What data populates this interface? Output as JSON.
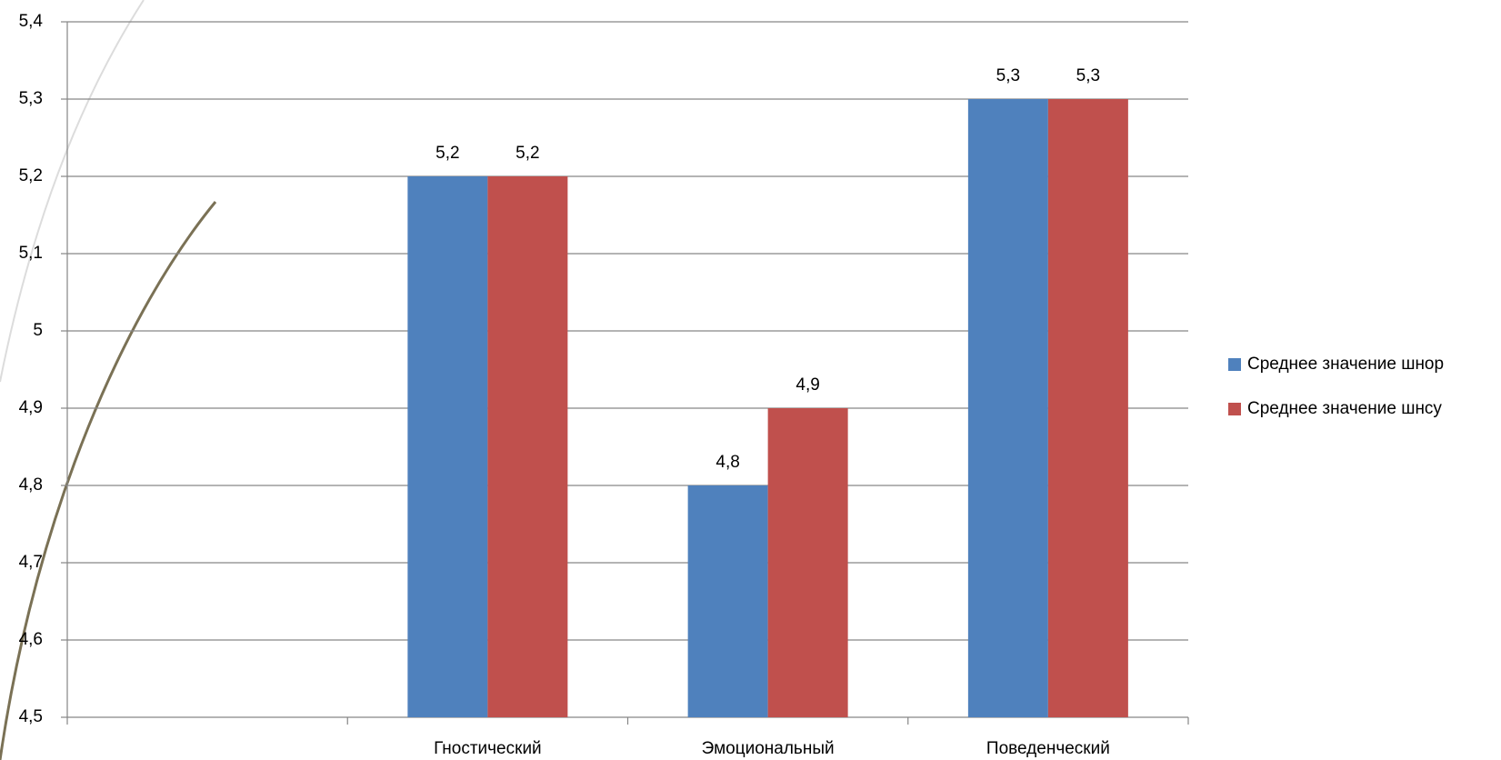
{
  "chart_data": {
    "type": "bar",
    "categories": [
      null,
      "Гностический",
      "Эмоциональный",
      "Поведенческий"
    ],
    "series": [
      {
        "name": "Среднее значение шнор",
        "color": "#4f81bd",
        "values": [
          null,
          5.2,
          4.8,
          5.3
        ],
        "value_labels": [
          null,
          "5,2",
          "4,8",
          "5,3"
        ]
      },
      {
        "name": "Среднее значение шнсу",
        "color": "#c0504d",
        "values": [
          null,
          5.2,
          4.9,
          5.3
        ],
        "value_labels": [
          null,
          "5,2",
          "4,9",
          "5,3"
        ]
      }
    ],
    "ylim": [
      4.5,
      5.4
    ],
    "yticks": [
      {
        "value": 4.5,
        "label": "4,5"
      },
      {
        "value": 4.6,
        "label": "4,6"
      },
      {
        "value": 4.7,
        "label": "4,7"
      },
      {
        "value": 4.8,
        "label": "4,8"
      },
      {
        "value": 4.9,
        "label": "4,9"
      },
      5,
      {
        "value": 5.1,
        "label": "5,1"
      },
      {
        "value": 5.2,
        "label": "5,2"
      },
      {
        "value": 5.3,
        "label": "5,3"
      },
      {
        "value": 5.4,
        "label": "5,4"
      }
    ],
    "grid": true,
    "legend": "right"
  }
}
